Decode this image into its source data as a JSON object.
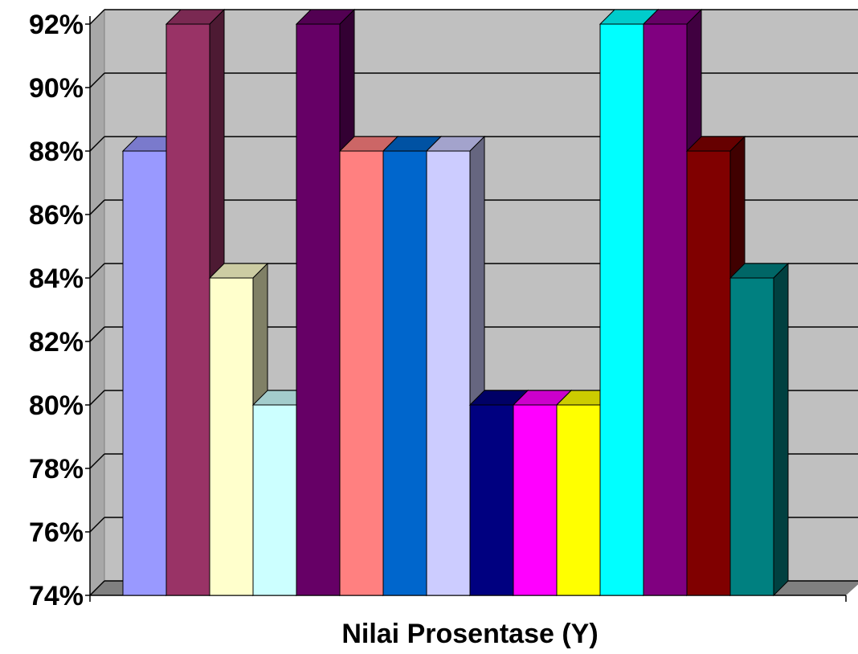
{
  "chart_data": {
    "type": "bar",
    "style": "3d-column",
    "xlabel": "Nilai Prosentase (Y)",
    "ylabel": "",
    "title": "",
    "ylim": [
      0.74,
      0.92
    ],
    "y_ticks": [
      "74%",
      "76%",
      "78%",
      "80%",
      "82%",
      "84%",
      "86%",
      "88%",
      "90%",
      "92%"
    ],
    "grid": true,
    "legend": "none",
    "background_color": "#C0C0C0",
    "series": [
      {
        "value": 0.88,
        "color": "#9999FF"
      },
      {
        "value": 0.92,
        "color": "#993366"
      },
      {
        "value": 0.84,
        "color": "#FFFFCC"
      },
      {
        "value": 0.8,
        "color": "#CCFFFF"
      },
      {
        "value": 0.92,
        "color": "#660066"
      },
      {
        "value": 0.88,
        "color": "#FF8080"
      },
      {
        "value": 0.88,
        "color": "#0066CC"
      },
      {
        "value": 0.88,
        "color": "#CCCCFF"
      },
      {
        "value": 0.8,
        "color": "#000080"
      },
      {
        "value": 0.8,
        "color": "#FF00FF"
      },
      {
        "value": 0.8,
        "color": "#FFFF00"
      },
      {
        "value": 0.92,
        "color": "#00FFFF"
      },
      {
        "value": 0.92,
        "color": "#800080"
      },
      {
        "value": 0.88,
        "color": "#800000"
      },
      {
        "value": 0.84,
        "color": "#008080"
      }
    ]
  }
}
